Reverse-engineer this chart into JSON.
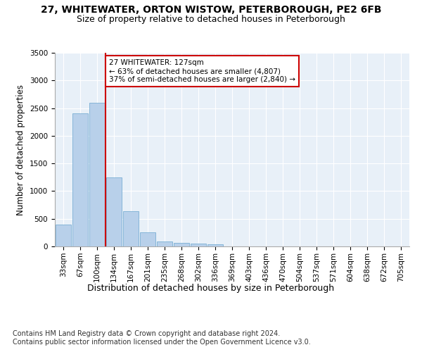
{
  "title1": "27, WHITEWATER, ORTON WISTOW, PETERBOROUGH, PE2 6FB",
  "title2": "Size of property relative to detached houses in Peterborough",
  "xlabel": "Distribution of detached houses by size in Peterborough",
  "ylabel": "Number of detached properties",
  "categories": [
    "33sqm",
    "67sqm",
    "100sqm",
    "134sqm",
    "167sqm",
    "201sqm",
    "235sqm",
    "268sqm",
    "302sqm",
    "336sqm",
    "369sqm",
    "403sqm",
    "436sqm",
    "470sqm",
    "504sqm",
    "537sqm",
    "571sqm",
    "604sqm",
    "638sqm",
    "672sqm",
    "705sqm"
  ],
  "values": [
    390,
    2400,
    2600,
    1250,
    640,
    260,
    95,
    60,
    55,
    40,
    0,
    0,
    0,
    0,
    0,
    0,
    0,
    0,
    0,
    0,
    0
  ],
  "bar_color": "#b8d0ea",
  "bar_edge_color": "#7aafd4",
  "vline_x_index": 3,
  "vline_color": "#cc0000",
  "annotation_text": "27 WHITEWATER: 127sqm\n← 63% of detached houses are smaller (4,807)\n37% of semi-detached houses are larger (2,840) →",
  "annotation_box_color": "#ffffff",
  "annotation_box_edge_color": "#cc0000",
  "ylim": [
    0,
    3500
  ],
  "yticks": [
    0,
    500,
    1000,
    1500,
    2000,
    2500,
    3000,
    3500
  ],
  "footer1": "Contains HM Land Registry data © Crown copyright and database right 2024.",
  "footer2": "Contains public sector information licensed under the Open Government Licence v3.0.",
  "plot_bg_color": "#e8f0f8",
  "title1_fontsize": 10,
  "title2_fontsize": 9,
  "xlabel_fontsize": 9,
  "ylabel_fontsize": 8.5,
  "tick_fontsize": 7.5,
  "footer_fontsize": 7
}
